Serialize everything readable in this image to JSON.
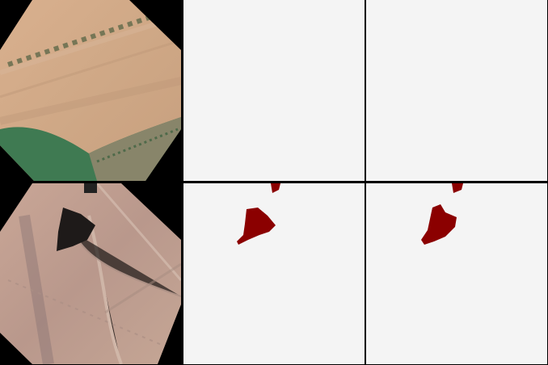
{
  "grid": {
    "rows": [
      {
        "image": {
          "description_key": "farmland-fields-with-tree-line"
        },
        "masks": [
          {
            "has_region": false
          },
          {
            "has_region": false
          }
        ]
      },
      {
        "image": {
          "description_key": "dry-terrain-with-dark-pond"
        },
        "masks": [
          {
            "has_region": true
          },
          {
            "has_region": true
          }
        ]
      }
    ]
  },
  "colors": {
    "background": "#000000",
    "mask_background": "#f4f4f4",
    "mask_region": "#8b0000"
  }
}
